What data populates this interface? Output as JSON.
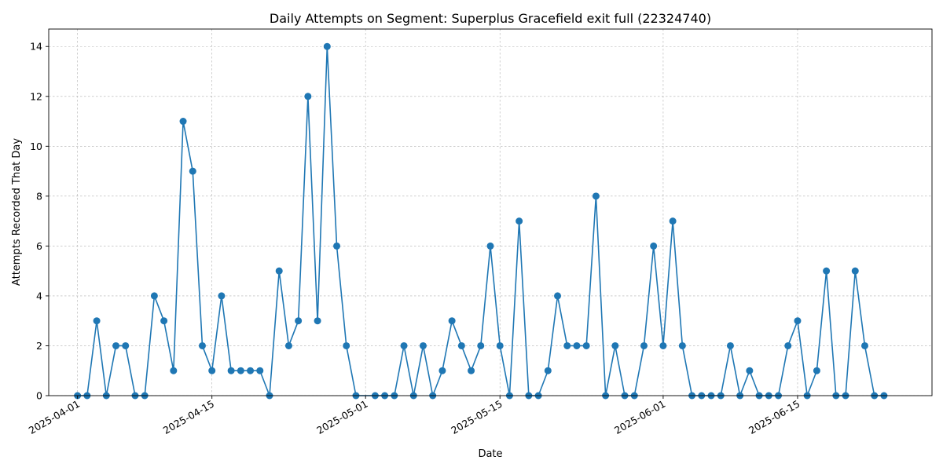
{
  "chart_data": {
    "type": "line",
    "title": "Daily Attempts on Segment: Superplus Gracefield exit full (22324740)",
    "xlabel": "Date",
    "ylabel": "Attempts Recorded That Day",
    "start_date": "2025-04-01",
    "x_ticks": [
      "2025-04-01",
      "2025-04-15",
      "2025-05-01",
      "2025-05-15",
      "2025-06-01",
      "2025-06-15"
    ],
    "y_ticks": [
      0,
      2,
      4,
      6,
      8,
      10,
      12,
      14
    ],
    "xlim": [
      "2025-03-29",
      "2025-06-29"
    ],
    "ylim": [
      0,
      14.7
    ],
    "grid": true,
    "color": "#1f77b4",
    "series": [
      {
        "name": "",
        "x": [
          "2025-04-01",
          "2025-04-02",
          "2025-04-03",
          "2025-04-04",
          "2025-04-05",
          "2025-04-06",
          "2025-04-07",
          "2025-04-08",
          "2025-04-09",
          "2025-04-10",
          "2025-04-11",
          "2025-04-12",
          "2025-04-13",
          "2025-04-14",
          "2025-04-15",
          "2025-04-16",
          "2025-04-17",
          "2025-04-18",
          "2025-04-19",
          "2025-04-20",
          "2025-04-21",
          "2025-04-22",
          "2025-04-23",
          "2025-04-24",
          "2025-04-25",
          "2025-04-26",
          "2025-04-27",
          "2025-04-28",
          "2025-04-29",
          "2025-04-30",
          "2025-05-02",
          "2025-05-03",
          "2025-05-04",
          "2025-05-05",
          "2025-05-06",
          "2025-05-07",
          "2025-05-08",
          "2025-05-09",
          "2025-05-10",
          "2025-05-11",
          "2025-05-12",
          "2025-05-13",
          "2025-05-14",
          "2025-05-15",
          "2025-05-16",
          "2025-05-17",
          "2025-05-18",
          "2025-05-19",
          "2025-05-20",
          "2025-05-21",
          "2025-05-22",
          "2025-05-23",
          "2025-05-24",
          "2025-05-25",
          "2025-05-26",
          "2025-05-27",
          "2025-05-28",
          "2025-05-29",
          "2025-05-30",
          "2025-05-31",
          "2025-06-01",
          "2025-06-02",
          "2025-06-03",
          "2025-06-04",
          "2025-06-05",
          "2025-06-06",
          "2025-06-07",
          "2025-06-08",
          "2025-06-09",
          "2025-06-10",
          "2025-06-11",
          "2025-06-12",
          "2025-06-13",
          "2025-06-14",
          "2025-06-15",
          "2025-06-16",
          "2025-06-17",
          "2025-06-18",
          "2025-06-19",
          "2025-06-20",
          "2025-06-21",
          "2025-06-22",
          "2025-06-23",
          "2025-06-24"
        ],
        "y": [
          0,
          0,
          3,
          0,
          2,
          2,
          0,
          0,
          4,
          3,
          1,
          11,
          9,
          2,
          1,
          4,
          1,
          1,
          1,
          1,
          0,
          5,
          2,
          3,
          12,
          3,
          14,
          6,
          2,
          0,
          0,
          0,
          0,
          2,
          0,
          2,
          0,
          1,
          3,
          2,
          1,
          2,
          6,
          2,
          0,
          7,
          0,
          0,
          1,
          4,
          2,
          2,
          2,
          8,
          0,
          2,
          0,
          0,
          2,
          6,
          2,
          7,
          2,
          0,
          0,
          0,
          0,
          2,
          0,
          1,
          0,
          0,
          0,
          2,
          3,
          0,
          1,
          5,
          0,
          0,
          5,
          2,
          0,
          0
        ]
      }
    ]
  }
}
